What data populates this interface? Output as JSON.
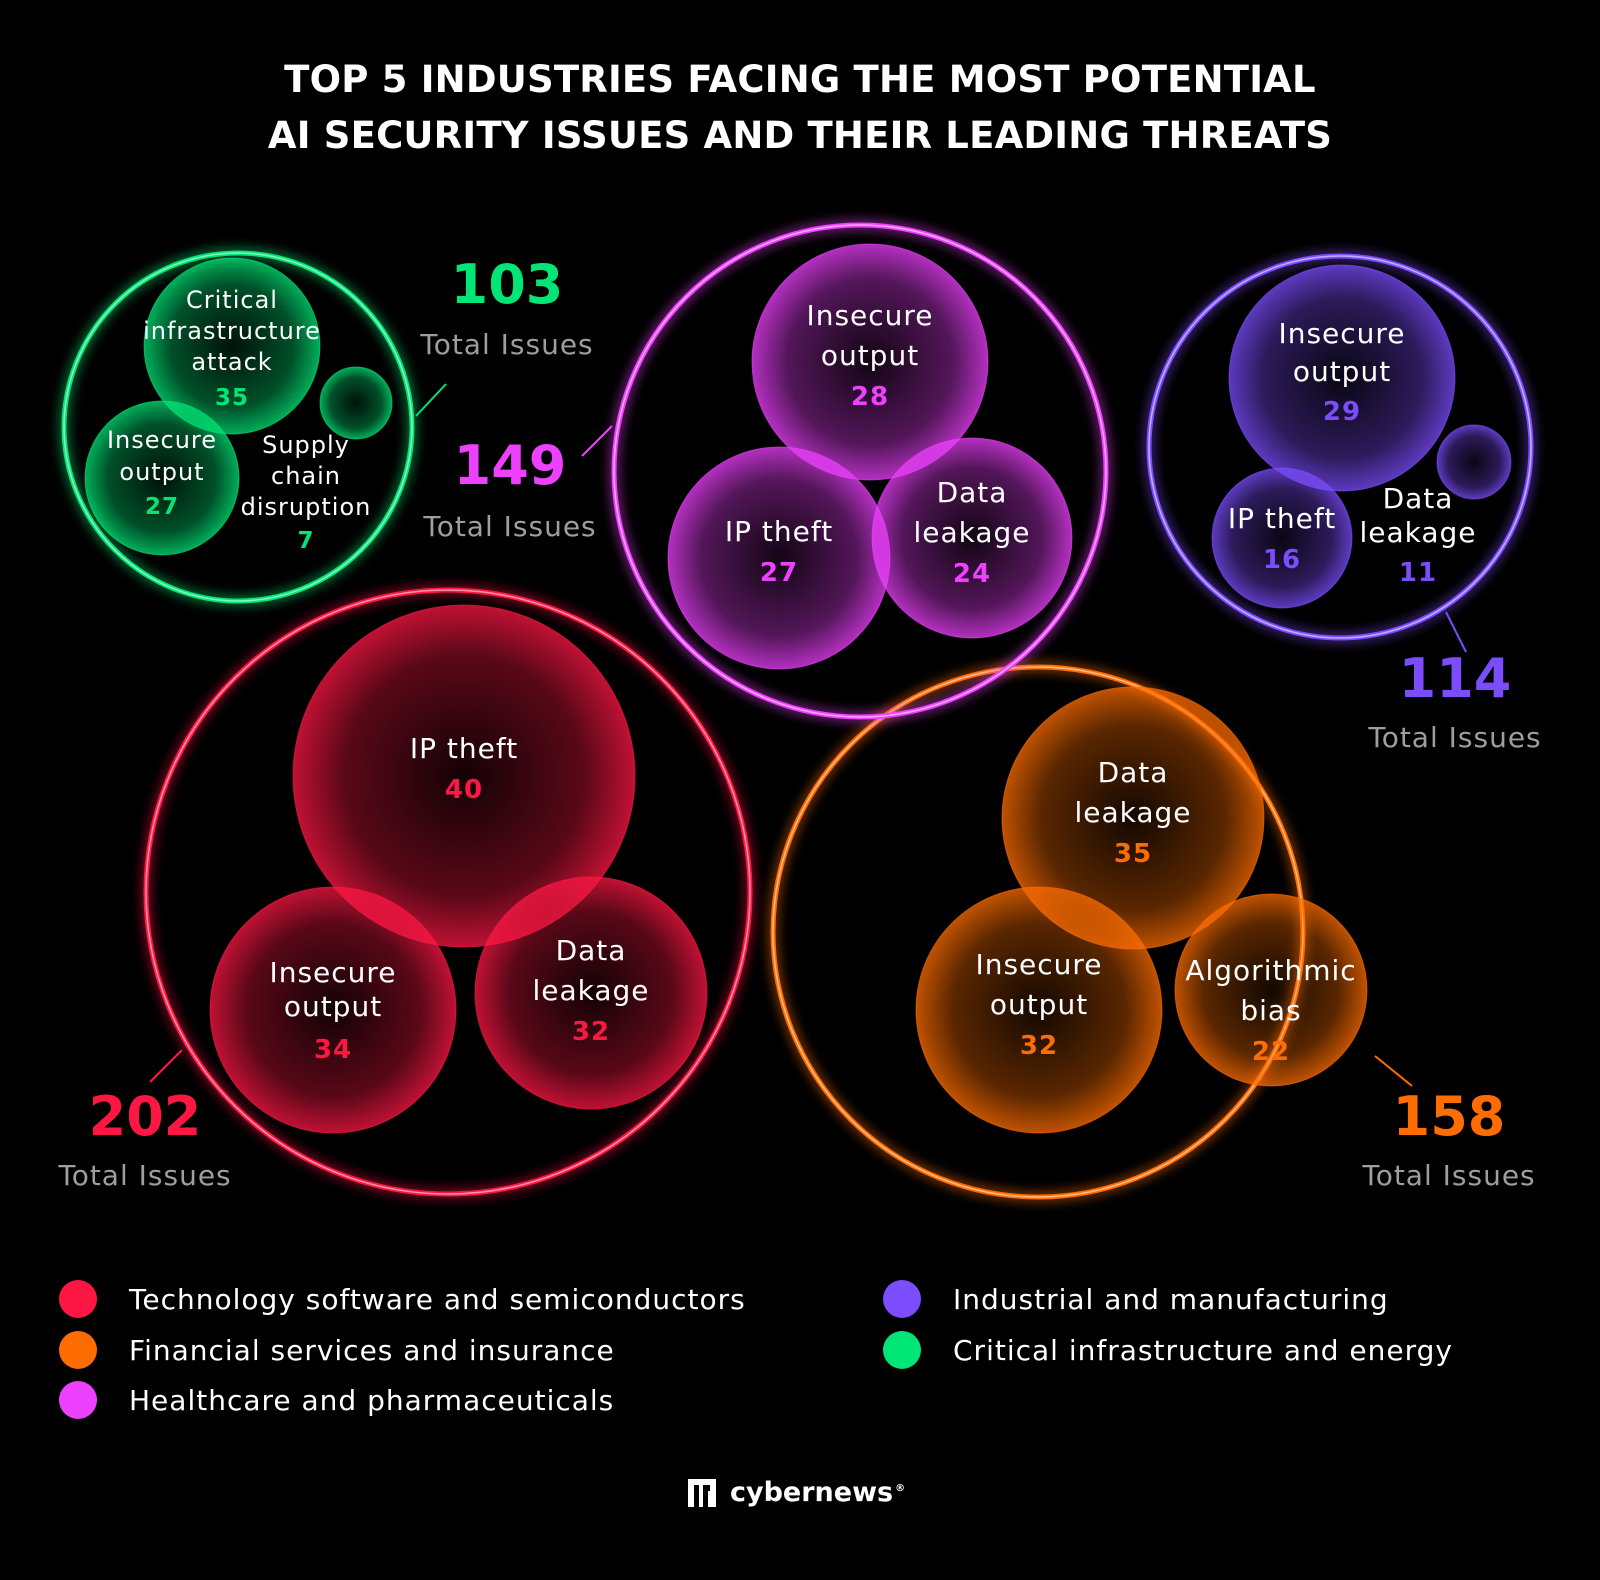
{
  "title": {
    "line1": "TOP 5 INDUSTRIES FACING THE MOST POTENTIAL",
    "line2": "AI SECURITY ISSUES AND THEIR LEADING THREATS"
  },
  "total_label": "Total Issues",
  "brand": {
    "name": "cybernews",
    "mark": "®"
  },
  "chart_data": {
    "type": "bubble",
    "industries": [
      {
        "name": "Technology software and semiconductors",
        "color": "#ff1744",
        "total": 202,
        "threats": [
          {
            "label": [
              "IP theft"
            ],
            "value": 40
          },
          {
            "label": [
              "Insecure",
              "output"
            ],
            "value": 34
          },
          {
            "label": [
              "Data",
              "leakage"
            ],
            "value": 32
          }
        ]
      },
      {
        "name": "Financial services and insurance",
        "color": "#ff6d00",
        "total": 158,
        "threats": [
          {
            "label": [
              "Data",
              "leakage"
            ],
            "value": 35
          },
          {
            "label": [
              "Insecure",
              "output"
            ],
            "value": 32
          },
          {
            "label": [
              "Algorithmic",
              "bias"
            ],
            "value": 22
          }
        ]
      },
      {
        "name": "Healthcare and pharmaceuticals",
        "color": "#ee40ff",
        "total": 149,
        "threats": [
          {
            "label": [
              "Insecure",
              "output"
            ],
            "value": 28
          },
          {
            "label": [
              "IP theft"
            ],
            "value": 27
          },
          {
            "label": [
              "Data",
              "leakage"
            ],
            "value": 24
          }
        ]
      },
      {
        "name": "Industrial and manufacturing",
        "color": "#7c4dff",
        "total": 114,
        "threats": [
          {
            "label": [
              "Insecure",
              "output"
            ],
            "value": 29
          },
          {
            "label": [
              "IP theft"
            ],
            "value": 16
          },
          {
            "label": [
              "Data",
              "leakage"
            ],
            "value": 11
          }
        ]
      },
      {
        "name": "Critical infrastructure and energy",
        "color": "#00e676",
        "total": 103,
        "threats": [
          {
            "label": [
              "Critical",
              "infrastructure",
              "attack"
            ],
            "value": 35
          },
          {
            "label": [
              "Insecure",
              "output"
            ],
            "value": 27
          },
          {
            "label": [
              "Supply",
              "chain",
              "disruption"
            ],
            "value": 7
          }
        ]
      }
    ]
  }
}
